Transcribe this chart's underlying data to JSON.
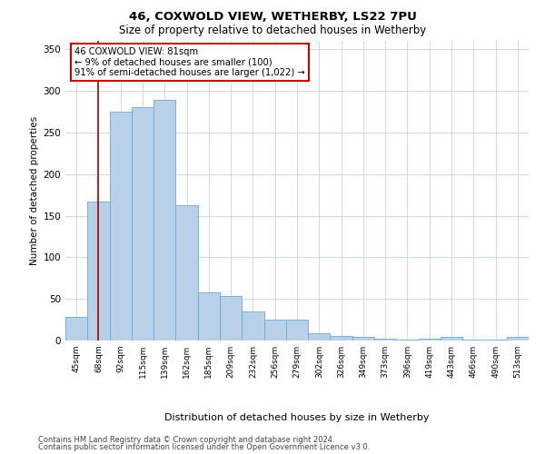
{
  "title1": "46, COXWOLD VIEW, WETHERBY, LS22 7PU",
  "title2": "Size of property relative to detached houses in Wetherby",
  "xlabel": "Distribution of detached houses by size in Wetherby",
  "ylabel": "Number of detached properties",
  "categories": [
    "45sqm",
    "68sqm",
    "92sqm",
    "115sqm",
    "139sqm",
    "162sqm",
    "185sqm",
    "209sqm",
    "232sqm",
    "256sqm",
    "279sqm",
    "302sqm",
    "326sqm",
    "349sqm",
    "373sqm",
    "396sqm",
    "419sqm",
    "443sqm",
    "466sqm",
    "490sqm",
    "513sqm"
  ],
  "values": [
    28,
    167,
    275,
    280,
    289,
    163,
    58,
    54,
    35,
    25,
    25,
    9,
    5,
    4,
    2,
    1,
    2,
    4,
    1,
    1,
    4
  ],
  "bar_color": "#b8d0e8",
  "bar_edge_color": "#6aaad4",
  "vline_x": 1.0,
  "vline_color": "#aa0000",
  "annotation_text": "46 COXWOLD VIEW: 81sqm\n← 9% of detached houses are smaller (100)\n91% of semi-detached houses are larger (1,022) →",
  "annotation_box_color": "#ffffff",
  "annotation_box_edge": "#cc0000",
  "ylim": [
    0,
    360
  ],
  "yticks": [
    0,
    50,
    100,
    150,
    200,
    250,
    300,
    350
  ],
  "bg_color": "#ffffff",
  "grid_color": "#ccd8ec",
  "footer1": "Contains HM Land Registry data © Crown copyright and database right 2024.",
  "footer2": "Contains public sector information licensed under the Open Government Licence v3.0."
}
